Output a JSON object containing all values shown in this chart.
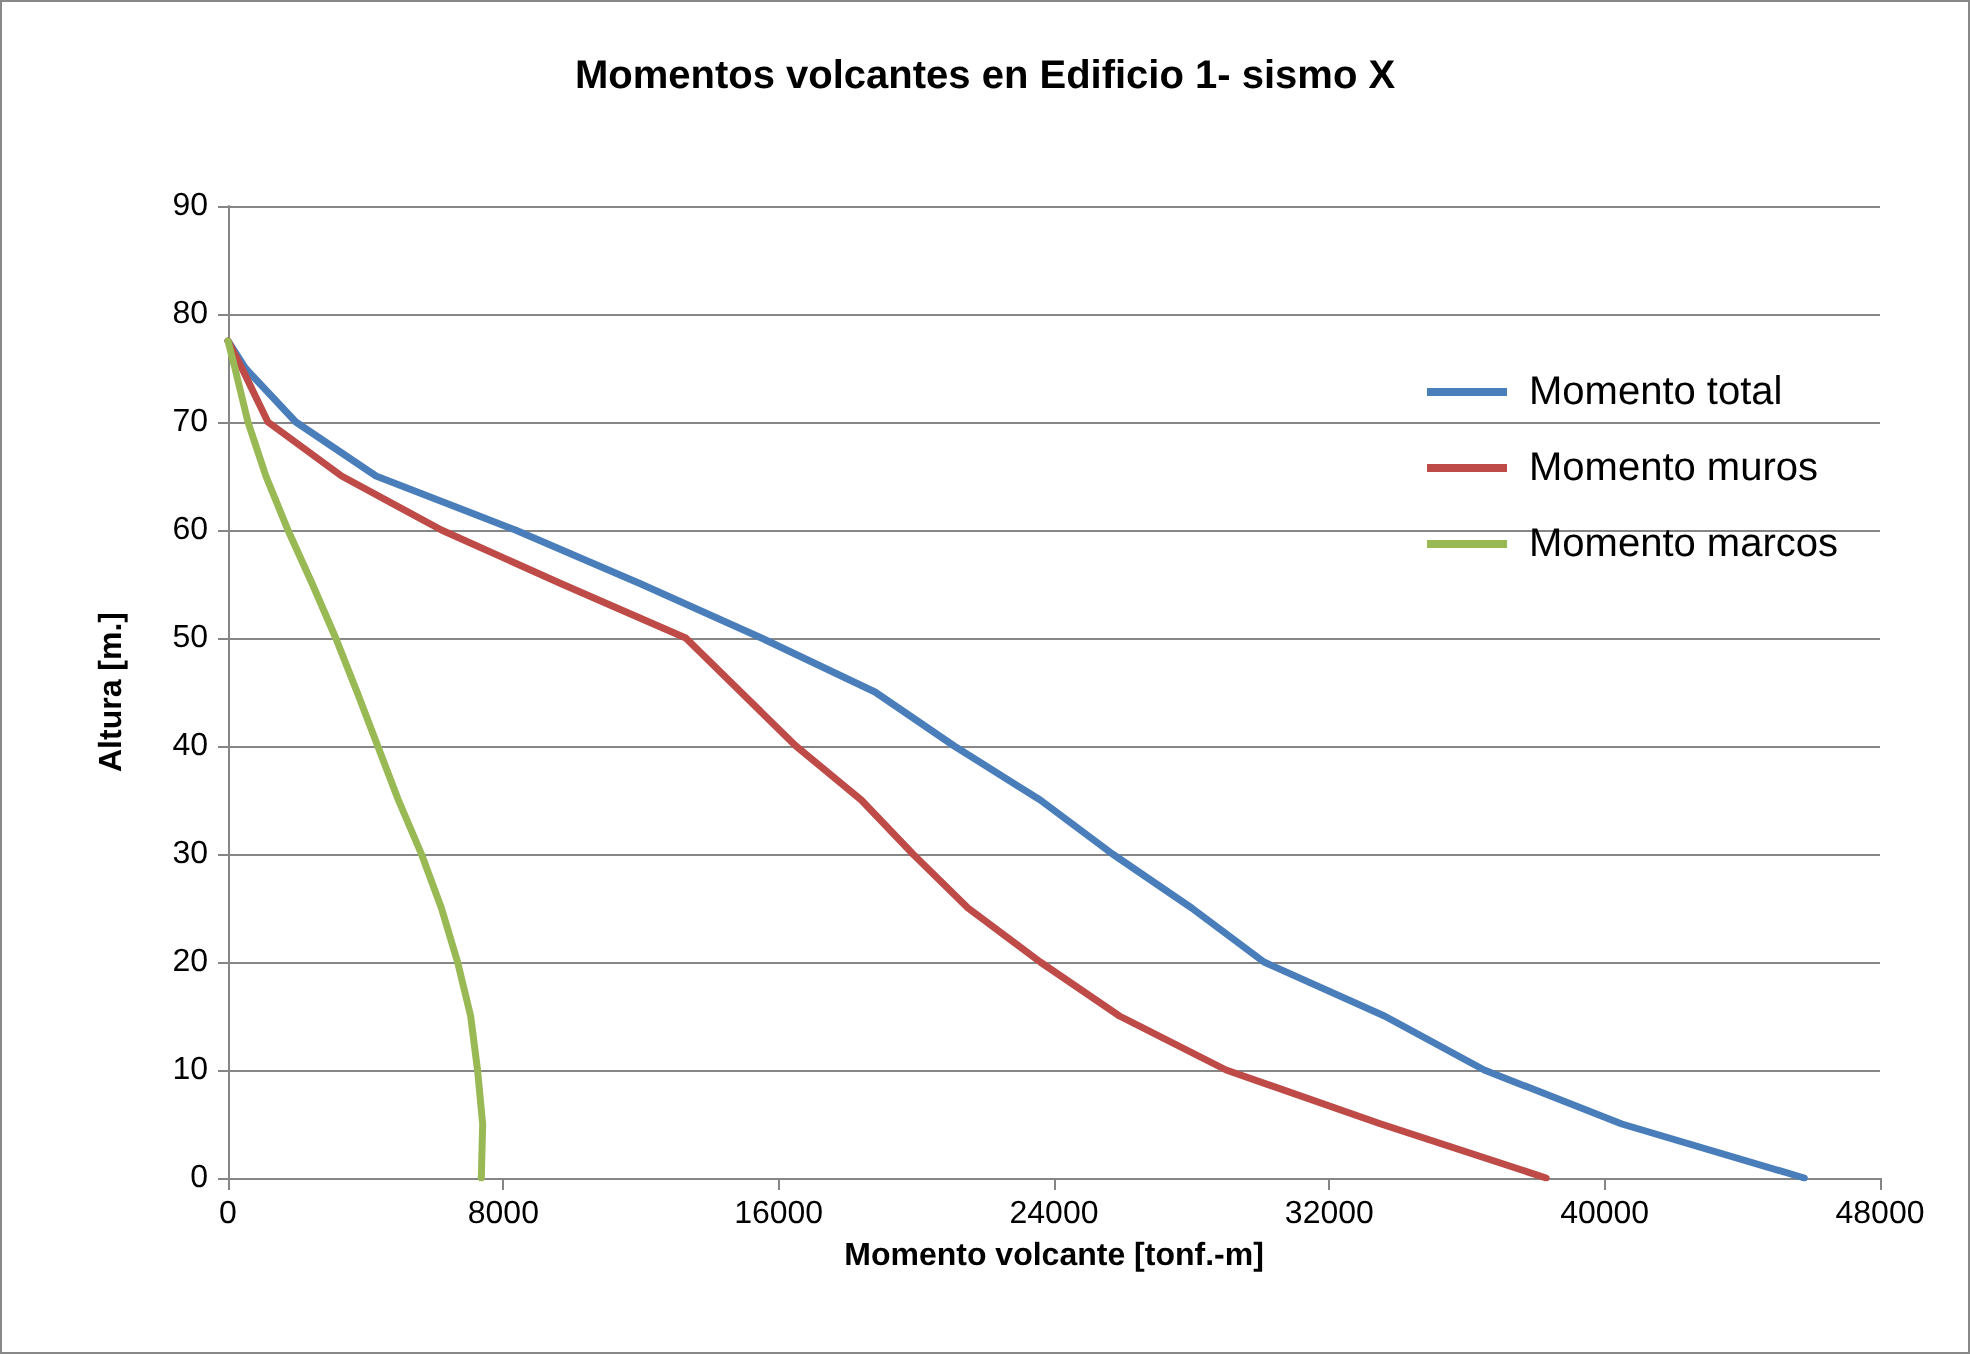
{
  "chart_data": {
    "type": "line",
    "title": "Momentos volcantes en Edificio 1- sismo X",
    "xlabel": "Momento volcante [tonf.-m]",
    "ylabel": "Altura [m.]",
    "xlim": [
      0,
      48000
    ],
    "xticks": [
      0,
      8000,
      16000,
      24000,
      32000,
      40000,
      48000
    ],
    "ylim": [
      0,
      90
    ],
    "yticks": [
      0,
      10,
      20,
      30,
      40,
      50,
      60,
      70,
      80,
      90
    ],
    "grid": "y",
    "legend": "top right",
    "marker": "none",
    "line_style": "solid",
    "series": [
      {
        "name": "Momento total",
        "color": "#4a7ebb",
        "x": [
          0,
          500,
          1970,
          4300,
          8350,
          12000,
          15500,
          18800,
          21100,
          23600,
          25700,
          28000,
          30100,
          33600,
          36500,
          40500,
          45800
        ],
        "values": [
          77.5,
          75,
          70,
          65,
          60,
          55,
          50,
          45,
          40,
          35,
          30,
          25,
          20,
          15,
          10,
          5,
          0
        ]
      },
      {
        "name": "Momento muros",
        "color": "#be4b48",
        "x": [
          0,
          400,
          1160,
          3300,
          6200,
          9700,
          13300,
          14900,
          16500,
          18400,
          19900,
          21500,
          23600,
          25900,
          29000,
          33500,
          38300
        ],
        "values": [
          77.5,
          75,
          70,
          65,
          60,
          55,
          50,
          45,
          40,
          35,
          30,
          25,
          20,
          15,
          10,
          5,
          0
        ]
      },
      {
        "name": "Momento marcos",
        "color": "#98b954",
        "x": [
          0,
          200,
          580,
          1100,
          1740,
          2450,
          3130,
          3750,
          4350,
          4950,
          5620,
          6200,
          6670,
          7050,
          7250,
          7400,
          7360
        ],
        "values": [
          77.5,
          75,
          70,
          65,
          60,
          55,
          50,
          45,
          40,
          35,
          30,
          25,
          20,
          15,
          10,
          5,
          0
        ]
      }
    ]
  }
}
